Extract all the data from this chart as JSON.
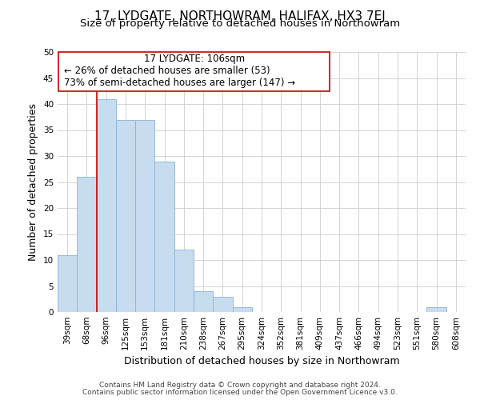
{
  "title": "17, LYDGATE, NORTHOWRAM, HALIFAX, HX3 7EJ",
  "subtitle": "Size of property relative to detached houses in Northowram",
  "xlabel": "Distribution of detached houses by size in Northowram",
  "ylabel": "Number of detached properties",
  "bar_color": "#c8dcf0",
  "bar_edge_color": "#8ab4d4",
  "background_color": "#ffffff",
  "grid_color": "#cccccc",
  "categories": [
    "39sqm",
    "68sqm",
    "96sqm",
    "125sqm",
    "153sqm",
    "181sqm",
    "210sqm",
    "238sqm",
    "267sqm",
    "295sqm",
    "324sqm",
    "352sqm",
    "381sqm",
    "409sqm",
    "437sqm",
    "466sqm",
    "494sqm",
    "523sqm",
    "551sqm",
    "580sqm",
    "608sqm"
  ],
  "values": [
    11,
    26,
    41,
    37,
    37,
    29,
    12,
    4,
    3,
    1,
    0,
    0,
    0,
    0,
    0,
    0,
    0,
    0,
    0,
    1,
    0
  ],
  "ylim": [
    0,
    50
  ],
  "yticks": [
    0,
    5,
    10,
    15,
    20,
    25,
    30,
    35,
    40,
    45,
    50
  ],
  "vline_color": "#cc0000",
  "annotation_line1": "17 LYDGATE: 106sqm",
  "annotation_line2": "← 26% of detached houses are smaller (53)",
  "annotation_line3": "73% of semi-detached houses are larger (147) →",
  "footer_line1": "Contains HM Land Registry data © Crown copyright and database right 2024.",
  "footer_line2": "Contains public sector information licensed under the Open Government Licence v3.0.",
  "title_fontsize": 11,
  "subtitle_fontsize": 9.5,
  "axis_label_fontsize": 9,
  "tick_fontsize": 7.5,
  "annotation_fontsize": 8.5,
  "footer_fontsize": 6.5
}
